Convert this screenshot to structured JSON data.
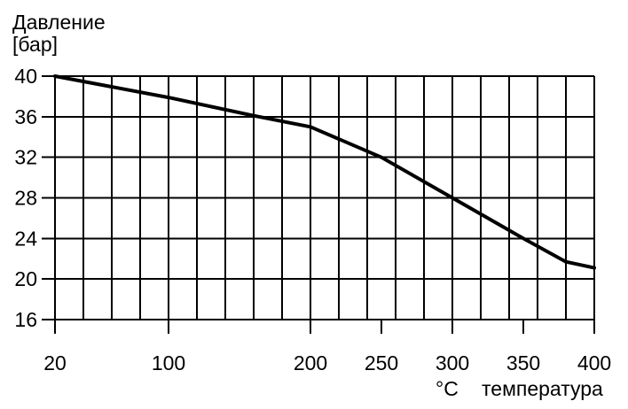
{
  "chart_data": {
    "type": "line",
    "ylabel": "Давление",
    "yunit": "[бар]",
    "xlabel": "температура",
    "xunit": "°C",
    "xlim": [
      20,
      400
    ],
    "ylim": [
      16,
      40
    ],
    "x_ticks": [
      20,
      100,
      200,
      250,
      300,
      350,
      400
    ],
    "y_ticks": [
      40,
      36,
      32,
      28,
      24,
      20,
      16
    ],
    "grid": true,
    "series": [
      {
        "x": [
          20,
          100,
          160,
          200,
          250,
          300,
          350,
          380,
          400
        ],
        "y": [
          40,
          37.9,
          36.1,
          35,
          32,
          28,
          24,
          21.7,
          21.1
        ]
      }
    ],
    "colors": {
      "line": "#000000",
      "grid": "#000000",
      "background": "#ffffff"
    }
  }
}
